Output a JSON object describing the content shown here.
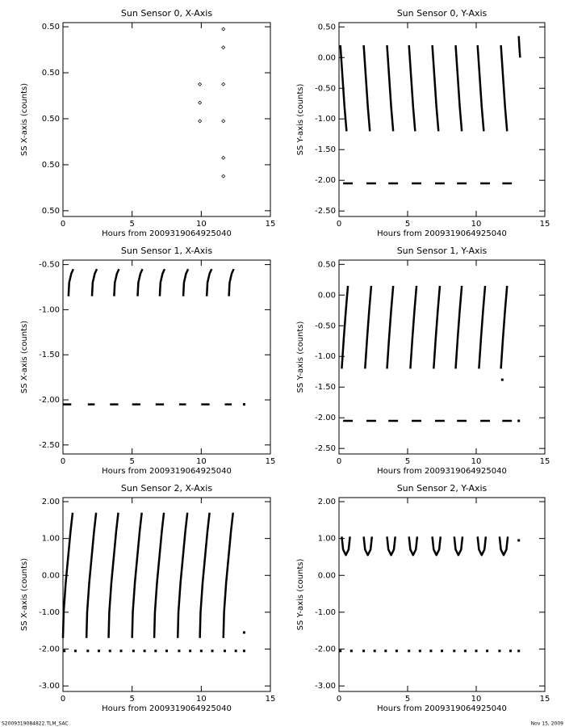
{
  "chart_data": [
    {
      "type": "scatter",
      "title": "Sun Sensor 0, X-Axis",
      "xlabel": "Hours from 2009319064925040",
      "ylabel": "SS X-axis (counts)",
      "color": "#000000",
      "x": [
        9.9,
        9.9,
        9.9,
        11.6,
        11.6,
        11.6,
        11.6,
        11.6,
        11.6
      ],
      "values": [
        0.5015,
        0.5007,
        0.4999,
        0.5039,
        0.5031,
        0.5015,
        0.4999,
        0.4983,
        0.4975
      ],
      "xlim": [
        0,
        15
      ],
      "xticks": [
        0,
        5,
        10,
        15
      ],
      "ylim": [
        0.49575,
        0.50418
      ],
      "yticks": [
        {
          "value": 0.504,
          "label": "0.50"
        },
        {
          "value": 0.502,
          "label": "0.50"
        },
        {
          "value": 0.5,
          "label": "0.50"
        },
        {
          "value": 0.498,
          "label": "0.50"
        },
        {
          "value": 0.496,
          "label": "0.50"
        }
      ]
    },
    {
      "type": "line",
      "title": "Sun Sensor 0, Y-Axis",
      "xlabel": "Hours from 2009319064925040",
      "ylabel": "SS Y-axis (counts)",
      "color": "#000000",
      "x": [
        0.1,
        0.25,
        0.4,
        0.55,
        null,
        1.8,
        1.95,
        2.1,
        2.25,
        null,
        3.5,
        3.65,
        3.8,
        3.95,
        null,
        5.1,
        5.25,
        5.4,
        5.55,
        null,
        6.8,
        6.95,
        7.1,
        7.25,
        null,
        8.5,
        8.65,
        8.8,
        8.95,
        null,
        10.1,
        10.25,
        10.4,
        10.55,
        null,
        11.8,
        11.95,
        12.1,
        12.25,
        null,
        13.1,
        13.15,
        13.2,
        null,
        0.3,
        1.0,
        null,
        2.0,
        2.7,
        null,
        3.6,
        4.3,
        null,
        5.3,
        6.0,
        null,
        7.0,
        7.7,
        null,
        8.6,
        9.3,
        null,
        10.3,
        11.0,
        null,
        11.9,
        12.6
      ],
      "values": [
        0.2,
        -0.3,
        -0.8,
        -1.2,
        null,
        0.2,
        -0.3,
        -0.8,
        -1.2,
        null,
        0.2,
        -0.3,
        -0.8,
        -1.2,
        null,
        0.2,
        -0.3,
        -0.8,
        -1.2,
        null,
        0.2,
        -0.3,
        -0.8,
        -1.2,
        null,
        0.2,
        -0.3,
        -0.8,
        -1.2,
        null,
        0.2,
        -0.3,
        -0.8,
        -1.2,
        null,
        0.2,
        -0.3,
        -0.8,
        -1.2,
        null,
        0.35,
        0.15,
        0.0,
        null,
        -2.05,
        -2.05,
        null,
        -2.05,
        -2.05,
        null,
        -2.05,
        -2.05,
        null,
        -2.05,
        -2.05,
        null,
        -2.05,
        -2.05,
        null,
        -2.05,
        -2.05,
        null,
        -2.05,
        -2.05,
        null,
        -2.05,
        -2.05
      ],
      "xlim": [
        0,
        15
      ],
      "xticks": [
        0,
        5,
        10,
        15
      ],
      "ylim": [
        -2.59,
        0.57
      ],
      "yticks": [
        {
          "value": 0.5,
          "label": "0.50"
        },
        {
          "value": 0,
          "label": "0.00"
        },
        {
          "value": -0.5,
          "label": "-0.50"
        },
        {
          "value": -1,
          "label": "-1.00"
        },
        {
          "value": -1.5,
          "label": "-1.50"
        },
        {
          "value": -2,
          "label": "-2.00"
        },
        {
          "value": -2.5,
          "label": "-2.50"
        }
      ]
    },
    {
      "type": "line",
      "title": "Sun Sensor 1, X-Axis",
      "xlabel": "Hours from 2009319064925040",
      "ylabel": "SS X-axis (counts)",
      "color": "#000000",
      "x": [
        0.4,
        0.45,
        0.6,
        0.75,
        null,
        2.1,
        2.15,
        2.3,
        2.45,
        null,
        3.7,
        3.75,
        3.9,
        4.05,
        null,
        5.4,
        5.45,
        5.6,
        5.75,
        null,
        7.0,
        7.05,
        7.2,
        7.35,
        null,
        8.7,
        8.75,
        8.9,
        9.05,
        null,
        10.4,
        10.45,
        10.6,
        10.75,
        null,
        12.0,
        12.05,
        12.2,
        12.35,
        null,
        0.0,
        0.6,
        null,
        1.8,
        2.3,
        null,
        3.4,
        4.0,
        null,
        5.0,
        5.6,
        null,
        6.7,
        7.3,
        null,
        8.4,
        8.9,
        null,
        10.0,
        10.6,
        null,
        11.7,
        12.2,
        null,
        13.1
      ],
      "values": [
        -0.85,
        -0.7,
        -0.6,
        -0.55,
        null,
        -0.85,
        -0.7,
        -0.6,
        -0.55,
        null,
        -0.85,
        -0.7,
        -0.6,
        -0.55,
        null,
        -0.85,
        -0.7,
        -0.6,
        -0.55,
        null,
        -0.85,
        -0.7,
        -0.6,
        -0.55,
        null,
        -0.85,
        -0.7,
        -0.6,
        -0.55,
        null,
        -0.85,
        -0.7,
        -0.6,
        -0.55,
        null,
        -0.85,
        -0.7,
        -0.6,
        -0.55,
        null,
        -2.05,
        -2.05,
        null,
        -2.05,
        -2.05,
        null,
        -2.05,
        -2.05,
        null,
        -2.05,
        -2.05,
        null,
        -2.05,
        -2.05,
        null,
        -2.05,
        -2.05,
        null,
        -2.05,
        -2.05,
        null,
        -2.05,
        -2.05,
        null,
        -2.05
      ],
      "xlim": [
        0,
        15
      ],
      "xticks": [
        0,
        5,
        10,
        15
      ],
      "ylim": [
        -2.6,
        -0.45
      ],
      "yticks": [
        {
          "value": -0.5,
          "label": "-0.50"
        },
        {
          "value": -1,
          "label": "-1.00"
        },
        {
          "value": -1.5,
          "label": "-1.50"
        },
        {
          "value": -2,
          "label": "-2.00"
        },
        {
          "value": -2.5,
          "label": "-2.50"
        }
      ]
    },
    {
      "type": "line",
      "title": "Sun Sensor 1, Y-Axis",
      "xlabel": "Hours from 2009319064925040",
      "ylabel": "SS Y-axis (counts)",
      "color": "#000000",
      "x": [
        0.2,
        0.35,
        0.5,
        0.65,
        null,
        1.9,
        2.05,
        2.2,
        2.35,
        null,
        3.5,
        3.65,
        3.8,
        3.95,
        null,
        5.2,
        5.35,
        5.5,
        5.65,
        null,
        6.9,
        7.05,
        7.2,
        7.35,
        null,
        8.5,
        8.65,
        8.8,
        8.95,
        null,
        10.2,
        10.35,
        10.5,
        10.65,
        null,
        11.8,
        11.95,
        12.1,
        12.25,
        null,
        11.9,
        null,
        0.3,
        1.0,
        null,
        2.0,
        2.7,
        null,
        3.6,
        4.3,
        null,
        5.3,
        6.0,
        null,
        7.0,
        7.7,
        null,
        8.6,
        9.3,
        null,
        10.3,
        11.0,
        null,
        11.9,
        12.6,
        null,
        13.1
      ],
      "values": [
        -1.2,
        -0.7,
        -0.25,
        0.15,
        null,
        -1.2,
        -0.7,
        -0.25,
        0.15,
        null,
        -1.2,
        -0.7,
        -0.25,
        0.15,
        null,
        -1.2,
        -0.7,
        -0.25,
        0.15,
        null,
        -1.2,
        -0.7,
        -0.25,
        0.15,
        null,
        -1.2,
        -0.7,
        -0.25,
        0.15,
        null,
        -1.2,
        -0.7,
        -0.25,
        0.15,
        null,
        -1.2,
        -0.7,
        -0.25,
        0.15,
        null,
        -1.38,
        null,
        -2.05,
        -2.05,
        null,
        -2.05,
        -2.05,
        null,
        -2.05,
        -2.05,
        null,
        -2.05,
        -2.05,
        null,
        -2.05,
        -2.05,
        null,
        -2.05,
        -2.05,
        null,
        -2.05,
        -2.05,
        null,
        -2.05,
        -2.05,
        null,
        -2.05
      ],
      "xlim": [
        0,
        15
      ],
      "xticks": [
        0,
        5,
        10,
        15
      ],
      "ylim": [
        -2.59,
        0.57
      ],
      "yticks": [
        {
          "value": 0.5,
          "label": "0.50"
        },
        {
          "value": 0,
          "label": "0.00"
        },
        {
          "value": -0.5,
          "label": "-0.50"
        },
        {
          "value": -1,
          "label": "-1.00"
        },
        {
          "value": -1.5,
          "label": "-1.50"
        },
        {
          "value": -2,
          "label": "-2.00"
        },
        {
          "value": -2.5,
          "label": "-2.50"
        }
      ]
    },
    {
      "type": "line",
      "title": "Sun Sensor 2, X-Axis",
      "xlabel": "Hours from 2009319064925040",
      "ylabel": "SS X-axis (counts)",
      "color": "#000000",
      "x": [
        0.0,
        0.05,
        0.2,
        0.4,
        0.55,
        0.7,
        null,
        1.7,
        1.75,
        1.9,
        2.1,
        2.25,
        2.4,
        null,
        3.3,
        3.35,
        3.5,
        3.7,
        3.85,
        4.0,
        null,
        5.0,
        5.05,
        5.2,
        5.4,
        5.55,
        5.7,
        null,
        6.6,
        6.65,
        6.8,
        7.0,
        7.15,
        7.3,
        null,
        8.3,
        8.35,
        8.5,
        8.7,
        8.85,
        9.0,
        null,
        9.9,
        9.95,
        10.1,
        10.3,
        10.45,
        10.6,
        null,
        11.6,
        11.65,
        11.8,
        12.0,
        12.15,
        12.3,
        null,
        13.1,
        null,
        0.1,
        null,
        0.9,
        null,
        1.8,
        null,
        2.6,
        null,
        3.4,
        null,
        4.2,
        null,
        5.1,
        null,
        5.9,
        null,
        6.7,
        null,
        7.5,
        null,
        8.4,
        null,
        9.2,
        null,
        10.0,
        null,
        10.8,
        null,
        11.7,
        null,
        12.5,
        null,
        13.1
      ],
      "values": [
        -1.7,
        -1.0,
        -0.2,
        0.6,
        1.2,
        1.7,
        null,
        -1.7,
        -1.0,
        -0.2,
        0.6,
        1.2,
        1.7,
        null,
        -1.7,
        -1.0,
        -0.2,
        0.6,
        1.2,
        1.7,
        null,
        -1.7,
        -1.0,
        -0.2,
        0.6,
        1.2,
        1.7,
        null,
        -1.7,
        -1.0,
        -0.2,
        0.6,
        1.2,
        1.7,
        null,
        -1.7,
        -1.0,
        -0.2,
        0.6,
        1.2,
        1.7,
        null,
        -1.7,
        -1.0,
        -0.2,
        0.6,
        1.2,
        1.7,
        null,
        -1.7,
        -1.0,
        -0.2,
        0.6,
        1.2,
        1.7,
        null,
        -1.55,
        null,
        -2.05,
        null,
        -2.05,
        null,
        -2.05,
        null,
        -2.05,
        null,
        -2.05,
        null,
        -2.05,
        null,
        -2.05,
        null,
        -2.05,
        null,
        -2.05,
        null,
        -2.05,
        null,
        -2.05,
        null,
        -2.05,
        null,
        -2.05,
        null,
        -2.05,
        null,
        -2.05,
        null,
        -2.05,
        null,
        -2.05
      ],
      "xlim": [
        0,
        15
      ],
      "xticks": [
        0,
        5,
        10,
        15
      ],
      "ylim": [
        -3.15,
        2.11
      ],
      "yticks": [
        {
          "value": 2,
          "label": "2.00"
        },
        {
          "value": 1,
          "label": "1.00"
        },
        {
          "value": 0,
          "label": "0.00"
        },
        {
          "value": -1,
          "label": "-1.00"
        },
        {
          "value": -2,
          "label": "-2.00"
        },
        {
          "value": -3,
          "label": "-3.00"
        }
      ]
    },
    {
      "type": "line",
      "title": "Sun Sensor 2, Y-Axis",
      "xlabel": "Hours from 2009319064925040",
      "ylabel": "SS Y-axis (counts)",
      "color": "#000000",
      "x": [
        0.2,
        0.3,
        0.5,
        0.7,
        0.8,
        null,
        1.8,
        1.9,
        2.1,
        2.3,
        2.4,
        null,
        3.5,
        3.6,
        3.8,
        4.0,
        4.1,
        null,
        5.1,
        5.2,
        5.4,
        5.6,
        5.7,
        null,
        6.8,
        6.9,
        7.1,
        7.3,
        7.4,
        null,
        8.4,
        8.5,
        8.7,
        8.9,
        9.0,
        null,
        10.1,
        10.2,
        10.4,
        10.6,
        10.7,
        null,
        11.7,
        11.8,
        12.0,
        12.2,
        12.3,
        null,
        13.1,
        null,
        0.1,
        null,
        0.9,
        null,
        1.8,
        null,
        2.6,
        null,
        3.4,
        null,
        4.2,
        null,
        5.1,
        null,
        5.9,
        null,
        6.7,
        null,
        7.5,
        null,
        8.4,
        null,
        9.2,
        null,
        10.0,
        null,
        10.8,
        null,
        11.7,
        null,
        12.5,
        null,
        13.1
      ],
      "values": [
        1.05,
        0.7,
        0.55,
        0.7,
        1.05,
        null,
        1.05,
        0.7,
        0.55,
        0.7,
        1.05,
        null,
        1.05,
        0.7,
        0.55,
        0.7,
        1.05,
        null,
        1.05,
        0.7,
        0.55,
        0.7,
        1.05,
        null,
        1.05,
        0.7,
        0.55,
        0.7,
        1.05,
        null,
        1.05,
        0.7,
        0.55,
        0.7,
        1.05,
        null,
        1.05,
        0.7,
        0.55,
        0.7,
        1.05,
        null,
        1.05,
        0.7,
        0.55,
        0.7,
        1.05,
        null,
        0.95,
        null,
        -2.05,
        null,
        -2.05,
        null,
        -2.05,
        null,
        -2.05,
        null,
        -2.05,
        null,
        -2.05,
        null,
        -2.05,
        null,
        -2.05,
        null,
        -2.05,
        null,
        -2.05,
        null,
        -2.05,
        null,
        -2.05,
        null,
        -2.05,
        null,
        -2.05,
        null,
        -2.05,
        null,
        -2.05,
        null,
        -2.05
      ],
      "xlim": [
        0,
        15
      ],
      "xticks": [
        0,
        5,
        10,
        15
      ],
      "ylim": [
        -3.15,
        2.11
      ],
      "yticks": [
        {
          "value": 2,
          "label": "2.00"
        },
        {
          "value": 1,
          "label": "1.00"
        },
        {
          "value": 0,
          "label": "0.00"
        },
        {
          "value": -1,
          "label": "-1.00"
        },
        {
          "value": -2,
          "label": "-2.00"
        },
        {
          "value": -3,
          "label": "-3.00"
        }
      ]
    }
  ],
  "footer": {
    "left": "S2009319084822.TLM_SAC",
    "right": "Nov 15, 2009"
  }
}
